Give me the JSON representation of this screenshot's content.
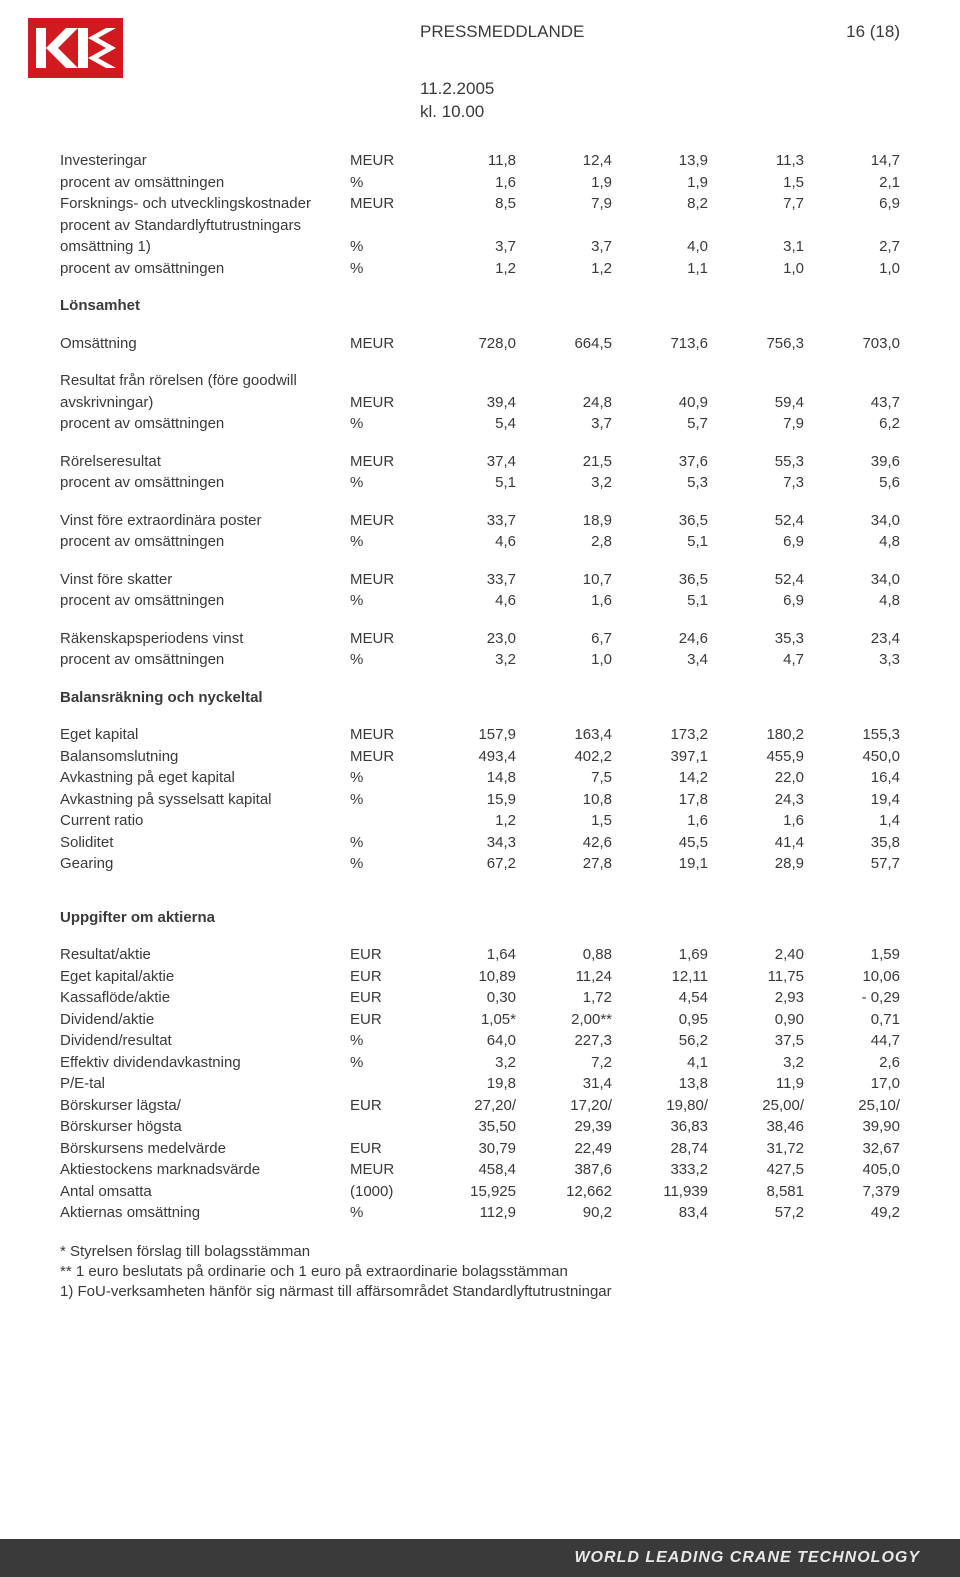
{
  "header": {
    "title": "PRESSMEDDLANDE",
    "pagenum": "16 (18)",
    "date1": "11.2.2005",
    "date2": "kl. 10.00"
  },
  "logo": {
    "bg": "#d11920",
    "fg": "#ffffff"
  },
  "footer": {
    "text": "WORLD LEADING CRANE TECHNOLOGY"
  },
  "tables": {
    "block1": [
      {
        "label": "Investeringar",
        "unit": "MEUR",
        "vals": [
          "11,8",
          "12,4",
          "13,9",
          "11,3",
          "14,7"
        ]
      },
      {
        "label": "procent av omsättningen",
        "unit": "%",
        "vals": [
          "1,6",
          "1,9",
          "1,9",
          "1,5",
          "2,1"
        ]
      },
      {
        "label": "Forsknings- och utvecklingskostnader",
        "unit": "MEUR",
        "vals": [
          "8,5",
          "7,9",
          "8,2",
          "7,7",
          "6,9"
        ]
      },
      {
        "label": "procent av Standardlyftutrustningars",
        "unit": "",
        "vals": [
          "",
          "",
          "",
          "",
          ""
        ]
      },
      {
        "label": "omsättning 1)",
        "unit": "%",
        "vals": [
          "3,7",
          "3,7",
          "4,0",
          "3,1",
          "2,7"
        ]
      },
      {
        "label": "procent av omsättningen",
        "unit": "%",
        "vals": [
          "1,2",
          "1,2",
          "1,1",
          "1,0",
          "1,0"
        ]
      }
    ],
    "lonsamhet_head": "Lönsamhet",
    "lonsamhet": [
      {
        "label": "Omsättning",
        "unit": "MEUR",
        "vals": [
          "728,0",
          "664,5",
          "713,6",
          "756,3",
          "703,0"
        ]
      }
    ],
    "lonsamhet2": [
      {
        "label": "Resultat från rörelsen (före goodwill",
        "unit": "",
        "vals": [
          "",
          "",
          "",
          "",
          ""
        ]
      },
      {
        "label": "avskrivningar)",
        "unit": "MEUR",
        "vals": [
          "39,4",
          "24,8",
          "40,9",
          "59,4",
          "43,7"
        ]
      },
      {
        "label": "procent av omsättningen",
        "unit": "%",
        "vals": [
          "5,4",
          "3,7",
          "5,7",
          "7,9",
          "6,2"
        ]
      }
    ],
    "lonsamhet3": [
      {
        "label": "Rörelseresultat",
        "unit": "MEUR",
        "vals": [
          "37,4",
          "21,5",
          "37,6",
          "55,3",
          "39,6"
        ]
      },
      {
        "label": "procent av omsättningen",
        "unit": "%",
        "vals": [
          "5,1",
          "3,2",
          "5,3",
          "7,3",
          "5,6"
        ]
      }
    ],
    "lonsamhet4": [
      {
        "label": "Vinst före extraordinära poster",
        "unit": "MEUR",
        "vals": [
          "33,7",
          "18,9",
          "36,5",
          "52,4",
          "34,0"
        ]
      },
      {
        "label": "procent av omsättningen",
        "unit": "%",
        "vals": [
          "4,6",
          "2,8",
          "5,1",
          "6,9",
          "4,8"
        ]
      }
    ],
    "lonsamhet5": [
      {
        "label": "Vinst före skatter",
        "unit": "MEUR",
        "vals": [
          "33,7",
          "10,7",
          "36,5",
          "52,4",
          "34,0"
        ]
      },
      {
        "label": "procent av omsättningen",
        "unit": "%",
        "vals": [
          "4,6",
          "1,6",
          "5,1",
          "6,9",
          "4,8"
        ]
      }
    ],
    "lonsamhet6": [
      {
        "label": "Räkenskapsperiodens vinst",
        "unit": "MEUR",
        "vals": [
          "23,0",
          "6,7",
          "24,6",
          "35,3",
          "23,4"
        ]
      },
      {
        "label": "procent av omsättningen",
        "unit": "%",
        "vals": [
          "3,2",
          "1,0",
          "3,4",
          "4,7",
          "3,3"
        ]
      }
    ],
    "balans_head": "Balansräkning och nyckeltal",
    "balans": [
      {
        "label": "Eget kapital",
        "unit": "MEUR",
        "vals": [
          "157,9",
          "163,4",
          "173,2",
          "180,2",
          "155,3"
        ]
      },
      {
        "label": "Balansomslutning",
        "unit": "MEUR",
        "vals": [
          "493,4",
          "402,2",
          "397,1",
          "455,9",
          "450,0"
        ]
      },
      {
        "label": "Avkastning på eget kapital",
        "unit": "%",
        "vals": [
          "14,8",
          "7,5",
          "14,2",
          "22,0",
          "16,4"
        ]
      },
      {
        "label": "Avkastning på sysselsatt kapital",
        "unit": "%",
        "vals": [
          "15,9",
          "10,8",
          "17,8",
          "24,3",
          "19,4"
        ]
      },
      {
        "label": "Current ratio",
        "unit": "",
        "vals": [
          "1,2",
          "1,5",
          "1,6",
          "1,6",
          "1,4"
        ]
      },
      {
        "label": "Soliditet",
        "unit": "%",
        "vals": [
          "34,3",
          "42,6",
          "45,5",
          "41,4",
          "35,8"
        ]
      },
      {
        "label": "Gearing",
        "unit": "%",
        "vals": [
          "67,2",
          "27,8",
          "19,1",
          "28,9",
          "57,7"
        ]
      }
    ],
    "aktier_head": "Uppgifter om aktierna",
    "aktier": [
      {
        "label": "Resultat/aktie",
        "unit": "EUR",
        "vals": [
          "1,64",
          "0,88",
          "1,69",
          "2,40",
          "1,59"
        ]
      },
      {
        "label": "Eget kapital/aktie",
        "unit": "EUR",
        "vals": [
          "10,89",
          "11,24",
          "12,11",
          "11,75",
          "10,06"
        ]
      },
      {
        "label": "Kassaflöde/aktie",
        "unit": "EUR",
        "vals": [
          "0,30",
          "1,72",
          "4,54",
          "2,93",
          "- 0,29"
        ]
      },
      {
        "label": "Dividend/aktie",
        "unit": "EUR",
        "vals": [
          "1,05*",
          "2,00**",
          "0,95",
          "0,90",
          "0,71"
        ]
      },
      {
        "label": "Dividend/resultat",
        "unit": "%",
        "vals": [
          "64,0",
          "227,3",
          "56,2",
          "37,5",
          "44,7"
        ]
      },
      {
        "label": "Effektiv dividendavkastning",
        "unit": "%",
        "vals": [
          "3,2",
          "7,2",
          "4,1",
          "3,2",
          "2,6"
        ]
      },
      {
        "label": "P/E-tal",
        "unit": "",
        "vals": [
          "19,8",
          "31,4",
          "13,8",
          "11,9",
          "17,0"
        ]
      },
      {
        "label": "Börskurser lägsta/",
        "unit": "EUR",
        "vals": [
          "27,20/",
          "17,20/",
          "19,80/",
          "25,00/",
          "25,10/"
        ]
      },
      {
        "label": "Börskurser högsta",
        "unit": "",
        "vals": [
          "35,50",
          "29,39",
          "36,83",
          "38,46",
          "39,90"
        ]
      },
      {
        "label": "Börskursens medelvärde",
        "unit": "EUR",
        "vals": [
          "30,79",
          "22,49",
          "28,74",
          "31,72",
          "32,67"
        ]
      },
      {
        "label": "Aktiestockens marknadsvärde",
        "unit": "MEUR",
        "vals": [
          "458,4",
          "387,6",
          "333,2",
          "427,5",
          "405,0"
        ]
      },
      {
        "label": "Antal omsatta",
        "unit": "(1000)",
        "vals": [
          "15,925",
          "12,662",
          "11,939",
          "8,581",
          "7,379"
        ]
      },
      {
        "label": "Aktiernas omsättning",
        "unit": "%",
        "vals": [
          "112,9",
          "90,2",
          "83,4",
          "57,2",
          "49,2"
        ]
      }
    ]
  },
  "footnotes": [
    "* Styrelsen förslag till bolagsstämman",
    "** 1 euro beslutats på ordinarie och 1 euro på extraordinarie bolagsstämman",
    "1) FoU-verksamheten hänför sig närmast till affärsområdet Standardlyftutrustningar"
  ]
}
